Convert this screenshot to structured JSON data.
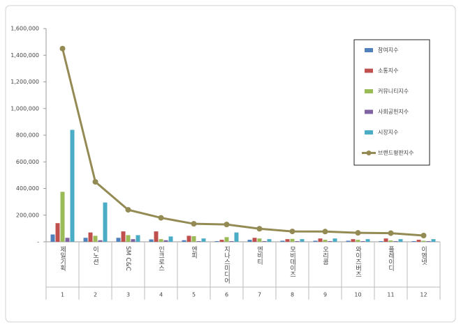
{
  "chart_data": {
    "type": "bar",
    "categories": [
      "제일기획",
      "이노션",
      "SM C&C",
      "인크로스",
      "엔피",
      "지나스미디어",
      "엔비티",
      "모비데이즈",
      "오리콤",
      "와이즈버즈",
      "플레이디",
      "이엠넷"
    ],
    "category_numbers": [
      "1",
      "2",
      "3",
      "4",
      "5",
      "6",
      "7",
      "8",
      "9",
      "10",
      "11",
      "12"
    ],
    "series": [
      {
        "name": "참여지수",
        "color": "#4f81bd",
        "values": [
          55000,
          30000,
          30000,
          18000,
          12000,
          5000,
          15000,
          8000,
          8000,
          8000,
          5000,
          5000
        ]
      },
      {
        "name": "소통지수",
        "color": "#c0504d",
        "values": [
          140000,
          70000,
          78000,
          78000,
          45000,
          15000,
          30000,
          20000,
          25000,
          20000,
          25000,
          15000
        ]
      },
      {
        "name": "커뮤니티지수",
        "color": "#9bbb59",
        "values": [
          375000,
          45000,
          50000,
          20000,
          42000,
          35000,
          25000,
          22000,
          15000,
          15000,
          10000,
          8000
        ]
      },
      {
        "name": "사회공헌지수",
        "color": "#8064a2",
        "values": [
          30000,
          12000,
          20000,
          12000,
          5000,
          5000,
          5000,
          5000,
          5000,
          5000,
          5000,
          5000
        ]
      },
      {
        "name": "시장지수",
        "color": "#4bacc6",
        "values": [
          840000,
          295000,
          50000,
          40000,
          25000,
          70000,
          20000,
          20000,
          25000,
          20000,
          20000,
          20000
        ]
      },
      {
        "name": "브랜드평판지수",
        "color": "#948a54",
        "type": "line",
        "values": [
          1450000,
          450000,
          240000,
          180000,
          135000,
          130000,
          98000,
          78000,
          77000,
          67000,
          65000,
          47000
        ]
      }
    ],
    "ylim": [
      0,
      1600000
    ],
    "yticks": [
      {
        "value": 0,
        "label": "-"
      },
      {
        "value": 200000,
        "label": "200,000"
      },
      {
        "value": 400000,
        "label": "400,000"
      },
      {
        "value": 600000,
        "label": "600,000"
      },
      {
        "value": 800000,
        "label": "800,000"
      },
      {
        "value": 1000000,
        "label": "1,000,000"
      },
      {
        "value": 1200000,
        "label": "1,200,000"
      },
      {
        "value": 1400000,
        "label": "1,400,000"
      },
      {
        "value": 1600000,
        "label": "1,600,000"
      }
    ],
    "grid": false,
    "legend": "right"
  }
}
